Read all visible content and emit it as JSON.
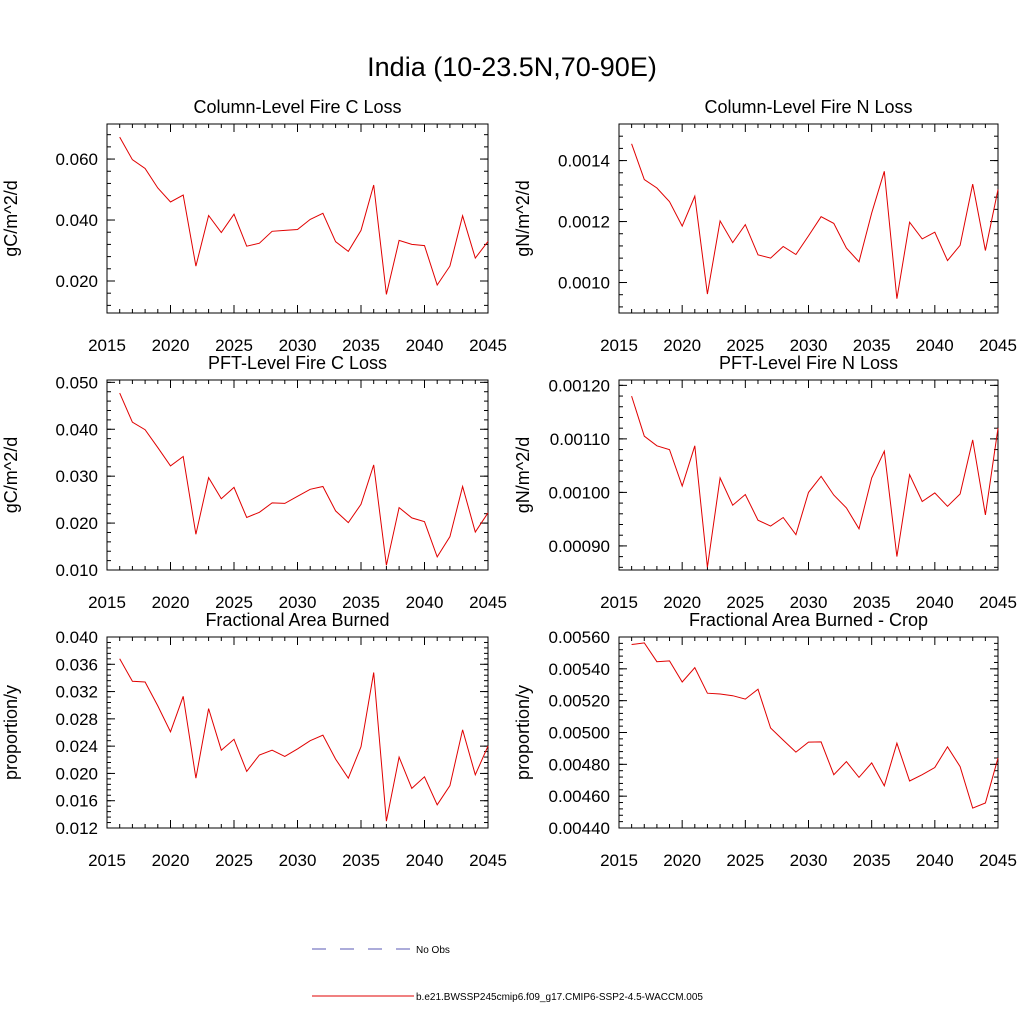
{
  "title": "India (10-23.5N,70-90E)",
  "legend": {
    "obs_label": "No Obs",
    "model_label": "b.e21.BWSSP245cmip6.f09_g17.CMIP6-SSP2-4.5-WACCM.005",
    "obs_color": "#5a5ab4",
    "model_color": "#e00000"
  },
  "colors": {
    "series": "#e00000",
    "axis": "#000000"
  },
  "chart_data": [
    {
      "type": "line",
      "title": "Column-Level Fire C Loss",
      "ylabel": "gC/m^2/d",
      "xlim": [
        2015,
        2045
      ],
      "ylim": [
        0.0095,
        0.0715
      ],
      "xticks": [
        2015,
        2020,
        2025,
        2030,
        2035,
        2040,
        2045
      ],
      "yticks": [
        0.02,
        0.04,
        0.06
      ],
      "ytick_labels": [
        "0.020",
        "0.040",
        "0.060"
      ],
      "x": [
        2016,
        2017,
        2018,
        2019,
        2020,
        2021,
        2022,
        2023,
        2024,
        2025,
        2026,
        2027,
        2028,
        2029,
        2030,
        2031,
        2032,
        2033,
        2034,
        2035,
        2036,
        2037,
        2038,
        2039,
        2040,
        2041,
        2042,
        2043,
        2044,
        2045
      ],
      "values": [
        0.0672,
        0.0598,
        0.0569,
        0.0505,
        0.0459,
        0.0482,
        0.0249,
        0.0415,
        0.0359,
        0.0419,
        0.0314,
        0.0324,
        0.0363,
        0.0366,
        0.0369,
        0.0402,
        0.0422,
        0.0329,
        0.0297,
        0.0366,
        0.0515,
        0.0156,
        0.0333,
        0.032,
        0.0316,
        0.0187,
        0.0249,
        0.0414,
        0.0275,
        0.033
      ]
    },
    {
      "type": "line",
      "title": "Column-Level Fire N Loss",
      "ylabel": "gN/m^2/d",
      "xlim": [
        2015,
        2045
      ],
      "ylim": [
        0.0009,
        0.00152
      ],
      "xticks": [
        2015,
        2020,
        2025,
        2030,
        2035,
        2040,
        2045
      ],
      "yticks": [
        0.001,
        0.0012,
        0.0014
      ],
      "ytick_labels": [
        "0.0010",
        "0.0012",
        "0.0014"
      ],
      "x": [
        2016,
        2017,
        2018,
        2019,
        2020,
        2021,
        2022,
        2023,
        2024,
        2025,
        2026,
        2027,
        2028,
        2029,
        2030,
        2031,
        2032,
        2033,
        2034,
        2035,
        2036,
        2037,
        2038,
        2039,
        2040,
        2041,
        2042,
        2043,
        2044,
        2045
      ],
      "values": [
        0.001455,
        0.001338,
        0.00131,
        0.001265,
        0.001185,
        0.001283,
        0.000962,
        0.001202,
        0.001131,
        0.00119,
        0.001091,
        0.00108,
        0.001118,
        0.001092,
        0.001153,
        0.001216,
        0.001194,
        0.001113,
        0.001068,
        0.001228,
        0.001365,
        0.000947,
        0.001198,
        0.001143,
        0.001165,
        0.001072,
        0.001122,
        0.001323,
        0.001105,
        0.001305
      ]
    },
    {
      "type": "line",
      "title": "PFT-Level Fire C Loss",
      "ylabel": "gC/m^2/d",
      "xlim": [
        2015,
        2045
      ],
      "ylim": [
        0.01,
        0.0505
      ],
      "xticks": [
        2015,
        2020,
        2025,
        2030,
        2035,
        2040,
        2045
      ],
      "yticks": [
        0.01,
        0.02,
        0.03,
        0.04,
        0.05
      ],
      "ytick_labels": [
        "0.010",
        "0.020",
        "0.030",
        "0.040",
        "0.050"
      ],
      "x": [
        2016,
        2017,
        2018,
        2019,
        2020,
        2021,
        2022,
        2023,
        2024,
        2025,
        2026,
        2027,
        2028,
        2029,
        2030,
        2031,
        2032,
        2033,
        2034,
        2035,
        2036,
        2037,
        2038,
        2039,
        2040,
        2041,
        2042,
        2043,
        2044,
        2045
      ],
      "values": [
        0.0477,
        0.0415,
        0.0399,
        0.0361,
        0.0322,
        0.0342,
        0.0176,
        0.0297,
        0.0252,
        0.0276,
        0.0212,
        0.0223,
        0.0243,
        0.0242,
        0.0257,
        0.0272,
        0.0278,
        0.0226,
        0.0201,
        0.024,
        0.0324,
        0.011,
        0.0233,
        0.0211,
        0.0203,
        0.0128,
        0.0171,
        0.0278,
        0.0181,
        0.0222
      ]
    },
    {
      "type": "line",
      "title": "PFT-Level Fire N Loss",
      "ylabel": "gN/m^2/d",
      "xlim": [
        2015,
        2045
      ],
      "ylim": [
        0.000855,
        0.00121
      ],
      "xticks": [
        2015,
        2020,
        2025,
        2030,
        2035,
        2040,
        2045
      ],
      "yticks": [
        0.0009,
        0.001,
        0.0011,
        0.0012
      ],
      "ytick_labels": [
        "0.00090",
        "0.00100",
        "0.00110",
        "0.00120"
      ],
      "x": [
        2016,
        2017,
        2018,
        2019,
        2020,
        2021,
        2022,
        2023,
        2024,
        2025,
        2026,
        2027,
        2028,
        2029,
        2030,
        2031,
        2032,
        2033,
        2034,
        2035,
        2036,
        2037,
        2038,
        2039,
        2040,
        2041,
        2042,
        2043,
        2044,
        2045
      ],
      "values": [
        0.00118,
        0.001105,
        0.001087,
        0.00108,
        0.001012,
        0.001087,
        0.00086,
        0.001027,
        0.000976,
        0.000996,
        0.000948,
        0.000937,
        0.000953,
        0.000921,
        0.001,
        0.00103,
        0.000995,
        0.000971,
        0.000932,
        0.001027,
        0.001077,
        0.00088,
        0.001033,
        0.000983,
        0.000999,
        0.000974,
        0.000997,
        0.001098,
        0.000958,
        0.00112
      ]
    },
    {
      "type": "line",
      "title": "Fractional Area Burned",
      "ylabel": "proportion/y",
      "xlim": [
        2015,
        2045
      ],
      "ylim": [
        0.012,
        0.04
      ],
      "xticks": [
        2015,
        2020,
        2025,
        2030,
        2035,
        2040,
        2045
      ],
      "yticks": [
        0.012,
        0.016,
        0.02,
        0.024,
        0.028,
        0.032,
        0.036,
        0.04
      ],
      "ytick_labels": [
        "0.012",
        "0.016",
        "0.020",
        "0.024",
        "0.028",
        "0.032",
        "0.036",
        "0.040"
      ],
      "x": [
        2016,
        2017,
        2018,
        2019,
        2020,
        2021,
        2022,
        2023,
        2024,
        2025,
        2026,
        2027,
        2028,
        2029,
        2030,
        2031,
        2032,
        2033,
        2034,
        2035,
        2036,
        2037,
        2038,
        2039,
        2040,
        2041,
        2042,
        2043,
        2044,
        2045
      ],
      "values": [
        0.0368,
        0.0335,
        0.0334,
        0.0299,
        0.0261,
        0.0313,
        0.0193,
        0.0295,
        0.0234,
        0.025,
        0.0203,
        0.0227,
        0.0234,
        0.0225,
        0.0236,
        0.0248,
        0.0256,
        0.0221,
        0.0193,
        0.0239,
        0.0348,
        0.013,
        0.0224,
        0.0178,
        0.0195,
        0.0154,
        0.0182,
        0.0264,
        0.0198,
        0.024
      ]
    },
    {
      "type": "line",
      "title": "Fractional Area Burned - Crop",
      "ylabel": "proportion/y",
      "xlim": [
        2015,
        2045
      ],
      "ylim": [
        0.0044,
        0.0056
      ],
      "xticks": [
        2015,
        2020,
        2025,
        2030,
        2035,
        2040,
        2045
      ],
      "yticks": [
        0.0044,
        0.0046,
        0.0048,
        0.005,
        0.0052,
        0.0054,
        0.0056
      ],
      "ytick_labels": [
        "0.00440",
        "0.00460",
        "0.00480",
        "0.00500",
        "0.00520",
        "0.00540",
        "0.00560"
      ],
      "x": [
        2016,
        2017,
        2018,
        2019,
        2020,
        2021,
        2022,
        2023,
        2024,
        2025,
        2026,
        2027,
        2028,
        2029,
        2030,
        2031,
        2032,
        2033,
        2034,
        2035,
        2036,
        2037,
        2038,
        2039,
        2040,
        2041,
        2042,
        2043,
        2044,
        2045
      ],
      "values": [
        0.005553,
        0.005563,
        0.005445,
        0.00545,
        0.005317,
        0.005407,
        0.005247,
        0.005242,
        0.005231,
        0.00521,
        0.005272,
        0.005028,
        0.004952,
        0.004877,
        0.00494,
        0.004941,
        0.004735,
        0.004817,
        0.004718,
        0.004809,
        0.004665,
        0.004933,
        0.004695,
        0.004735,
        0.00478,
        0.00491,
        0.004786,
        0.004525,
        0.004557,
        0.00484
      ]
    }
  ]
}
